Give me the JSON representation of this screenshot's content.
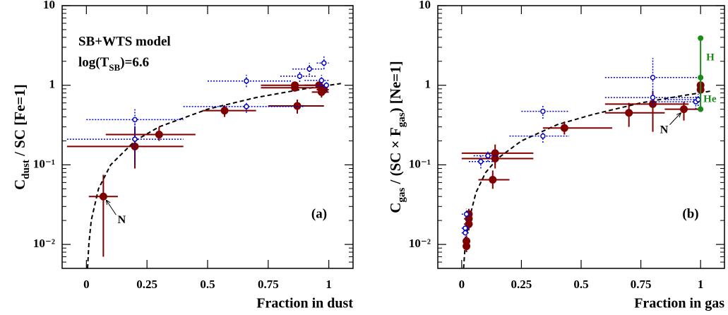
{
  "chart_data": [
    {
      "type": "scatter",
      "panel_label": "(a)",
      "point_label": "N",
      "xlabel": "Fraction in dust",
      "ylabel": [
        {
          "text": "C"
        },
        {
          "text": "dust",
          "sub": true
        },
        {
          "text": " / SC [Fe=1]"
        }
      ],
      "model_text": "SB+WTS model",
      "model_param": [
        {
          "text": "log(T"
        },
        {
          "text": "SB",
          "sub": true
        },
        {
          "text": ")=6.6"
        }
      ],
      "xlim": [
        -0.1,
        1.1
      ],
      "ylim": [
        0.005,
        10
      ],
      "log_y": true,
      "xticks": [
        0,
        0.25,
        0.5,
        0.75,
        1
      ],
      "yticks": [
        {
          "value": 0.01,
          "label": "10⁻²"
        },
        {
          "value": 0.1,
          "label": "10⁻¹"
        },
        1,
        10
      ],
      "series": [
        {
          "color": "#800000",
          "marker": "filled",
          "x": [
            0.07,
            0.2,
            0.3,
            0.57,
            0.87,
            0.86,
            0.86,
            0.97,
            0.98,
            0.96
          ],
          "values": [
            0.04,
            0.17,
            0.24,
            0.48,
            0.55,
            1.0,
            0.93,
            0.82,
            0.88,
            1.0
          ],
          "x_lo": [
            0.01,
            -0.08,
            0.08,
            0.48,
            0.75,
            0.72,
            0.72,
            0.93,
            0.95,
            0.9
          ],
          "x_hi": [
            0.13,
            0.4,
            0.45,
            0.7,
            0.98,
            1.0,
            0.98,
            1.0,
            1.0,
            1.0
          ],
          "y_lo": [
            0.007,
            0.09,
            0.2,
            0.4,
            0.44,
            0.9,
            0.85,
            0.7,
            0.78,
            0.9
          ],
          "y_hi": [
            0.075,
            0.3,
            0.3,
            0.56,
            0.66,
            1.1,
            1.0,
            0.95,
            1.0,
            1.1
          ]
        },
        {
          "color": "#0000cc",
          "marker": "open",
          "x": [
            0.2,
            0.2,
            0.66,
            0.66,
            0.88,
            0.92,
            0.98,
            0.97,
            0.99
          ],
          "values": [
            0.37,
            0.21,
            1.13,
            0.54,
            1.3,
            1.6,
            1.9,
            1.15,
            1.0
          ],
          "x_lo": [
            0.0,
            -0.08,
            0.5,
            0.4,
            0.8,
            0.85,
            0.95,
            0.9,
            0.95
          ],
          "x_hi": [
            0.4,
            0.4,
            0.85,
            0.9,
            0.95,
            0.98,
            1.0,
            1.0,
            1.0
          ],
          "y_lo": [
            0.25,
            0.1,
            0.95,
            0.45,
            1.1,
            1.35,
            1.6,
            0.95,
            0.85
          ],
          "y_hi": [
            0.5,
            0.35,
            1.35,
            0.62,
            1.5,
            1.9,
            2.3,
            1.35,
            1.1
          ]
        }
      ],
      "curve": {
        "color": "#000000",
        "dashed": true,
        "x": [
          0.005,
          0.01,
          0.02,
          0.05,
          0.1,
          0.2,
          0.3,
          0.5,
          0.7,
          0.9,
          1.05
        ],
        "y": [
          0.005,
          0.01,
          0.02,
          0.05,
          0.1,
          0.2,
          0.3,
          0.5,
          0.7,
          0.9,
          1.05
        ]
      }
    },
    {
      "type": "scatter",
      "panel_label": "(b)",
      "point_label": "N",
      "xlabel": "Fraction in gas",
      "ylabel": [
        {
          "text": "C"
        },
        {
          "text": "gas",
          "sub": true
        },
        {
          "text": " / (SC × F"
        },
        {
          "text": "gas",
          "sub": true
        },
        {
          "text": ") [Ne=1]"
        }
      ],
      "xlim": [
        -0.1,
        1.1
      ],
      "ylim": [
        0.005,
        10
      ],
      "log_y": true,
      "xticks": [
        0,
        0.25,
        0.5,
        0.75,
        1
      ],
      "yticks": [
        {
          "value": 0.01,
          "label": "10⁻²"
        },
        {
          "value": 0.1,
          "label": "10⁻¹"
        },
        1,
        10
      ],
      "series": [
        {
          "color": "#800000",
          "marker": "filled",
          "x": [
            0.02,
            0.02,
            0.03,
            0.03,
            0.03,
            0.14,
            0.14,
            0.13,
            0.43,
            0.7,
            0.8,
            0.93,
            1.0,
            1.0
          ],
          "values": [
            0.0095,
            0.011,
            0.018,
            0.021,
            0.024,
            0.14,
            0.12,
            0.065,
            0.29,
            0.45,
            0.58,
            0.5,
            1.0,
            0.88
          ],
          "x_lo": [
            0.01,
            0.01,
            0.01,
            0.01,
            0.01,
            0.0,
            0.0,
            0.07,
            0.34,
            0.6,
            0.6,
            0.85,
            null,
            null
          ],
          "x_hi": [
            0.03,
            0.03,
            0.04,
            0.04,
            0.04,
            0.3,
            0.3,
            0.2,
            0.63,
            0.85,
            0.95,
            1.0,
            null,
            null
          ],
          "y_lo": [
            0.008,
            0.009,
            0.015,
            0.018,
            0.02,
            0.1,
            0.09,
            0.05,
            0.24,
            0.3,
            0.26,
            0.36,
            0.85,
            0.75
          ],
          "y_hi": [
            0.011,
            0.013,
            0.022,
            0.025,
            0.028,
            0.18,
            0.15,
            0.085,
            0.35,
            0.6,
            0.85,
            0.62,
            1.1,
            1.0
          ]
        },
        {
          "color": "#0000cc",
          "marker": "open",
          "x": [
            0.015,
            0.015,
            0.02,
            0.08,
            0.11,
            0.34,
            0.34,
            0.8,
            0.8,
            0.98,
            0.99
          ],
          "values": [
            0.014,
            0.016,
            0.024,
            0.11,
            0.13,
            0.47,
            0.23,
            1.25,
            0.7,
            0.62,
            0.66
          ],
          "x_lo": [
            0.0,
            0.0,
            0.0,
            0.03,
            0.05,
            0.25,
            0.2,
            0.6,
            0.6,
            0.8,
            0.85
          ],
          "x_hi": [
            0.03,
            0.03,
            0.04,
            0.13,
            0.15,
            0.45,
            0.45,
            1.0,
            1.0,
            1.0,
            1.0
          ],
          "y_lo": [
            0.012,
            0.014,
            0.02,
            0.09,
            0.11,
            0.38,
            0.19,
            0.8,
            0.55,
            0.5,
            0.55
          ],
          "y_hi": [
            0.016,
            0.018,
            0.028,
            0.13,
            0.15,
            0.56,
            0.27,
            2.2,
            0.85,
            0.75,
            0.78
          ]
        },
        {
          "color": "#1a8a1a",
          "marker": "filled",
          "connect": true,
          "labels": [
            "He",
            "H"
          ],
          "x": [
            1,
            1,
            1
          ],
          "values": [
            0.5,
            1.25,
            3.9
          ]
        }
      ],
      "curve": {
        "color": "#000000",
        "dashed": true,
        "x": [
          0.008,
          0.015,
          0.03,
          0.06,
          0.1,
          0.15,
          0.25,
          0.4,
          0.55,
          0.75,
          0.9,
          1.05
        ],
        "y": [
          0.005,
          0.01,
          0.02,
          0.045,
          0.08,
          0.12,
          0.2,
          0.32,
          0.43,
          0.6,
          0.72,
          0.85
        ]
      }
    }
  ]
}
